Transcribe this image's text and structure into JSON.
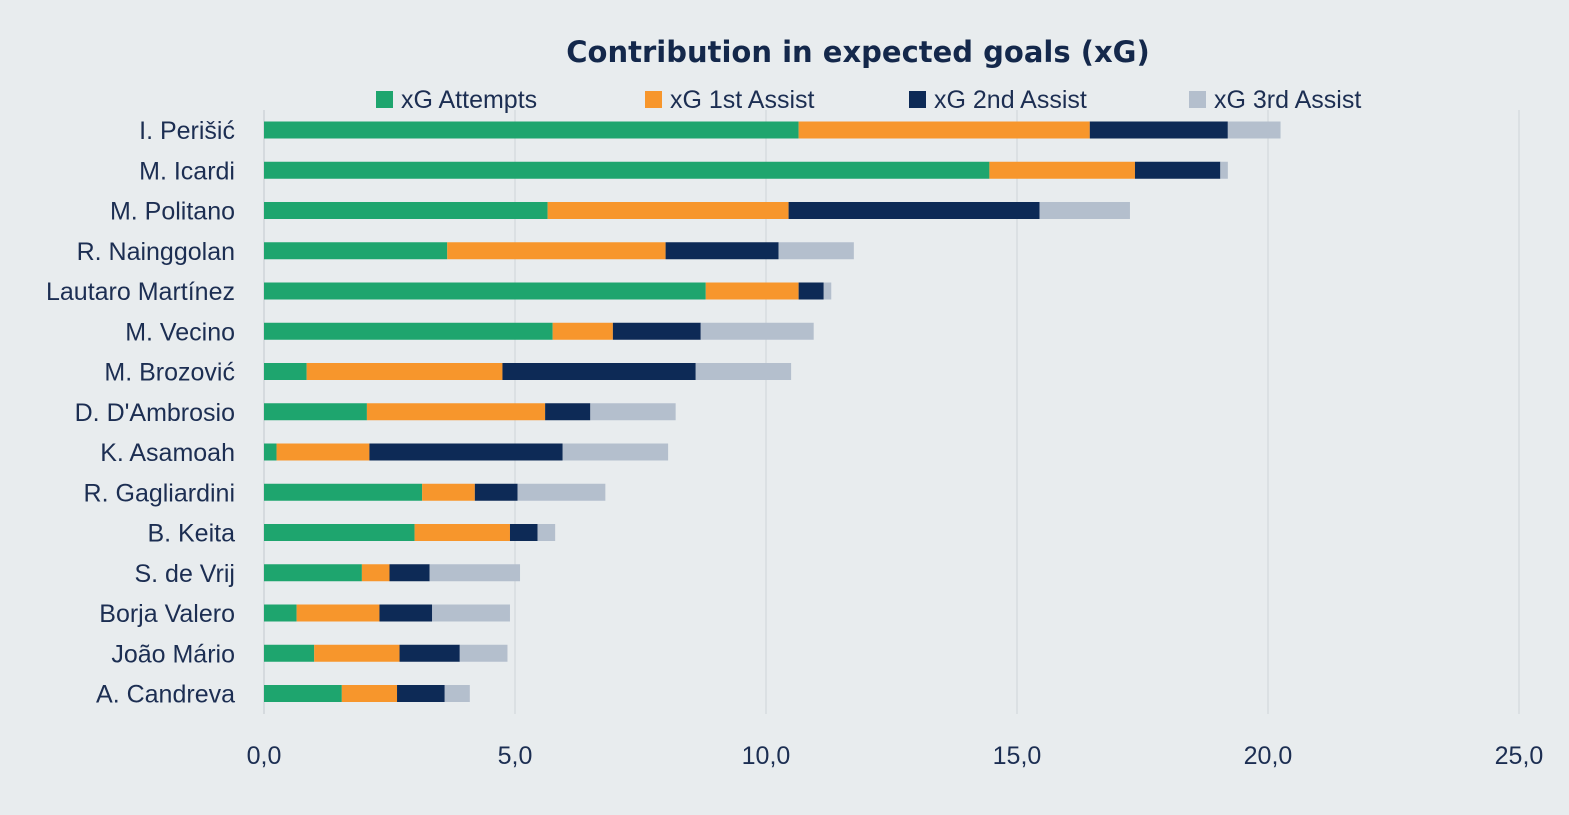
{
  "chart_data": {
    "type": "bar",
    "orientation": "horizontal",
    "stacked": true,
    "title": "Contribution in expected goals (xG)",
    "xlabel": "",
    "ylabel": "",
    "xlim": [
      0,
      25
    ],
    "x_ticks": [
      0,
      5,
      10,
      15,
      20,
      25
    ],
    "x_tick_labels": [
      "0,0",
      "5,0",
      "10,0",
      "15,0",
      "20,0",
      "25,0"
    ],
    "grid": true,
    "legend_position": "top",
    "categories": [
      "I. Perišić",
      "M. Icardi",
      "M. Politano",
      "R. Nainggolan",
      "Lautaro Martínez",
      "M. Vecino",
      "M. Brozović",
      "D. D'Ambrosio",
      "K. Asamoah",
      "R. Gagliardini",
      "B. Keita",
      "S. de Vrij",
      "Borja Valero",
      "João Mário",
      "A. Candreva"
    ],
    "series": [
      {
        "name": "xG Attempts",
        "color": "#1ea56e",
        "values": [
          10.65,
          14.45,
          5.65,
          3.65,
          8.8,
          5.75,
          0.85,
          2.05,
          0.25,
          3.15,
          3.0,
          1.95,
          0.65,
          1.0,
          1.55
        ]
      },
      {
        "name": "xG 1st Assist",
        "color": "#f7962c",
        "values": [
          5.8,
          2.9,
          4.8,
          4.35,
          1.85,
          1.2,
          3.9,
          3.55,
          1.85,
          1.05,
          1.9,
          0.55,
          1.65,
          1.7,
          1.1
        ]
      },
      {
        "name": "xG 2nd Assist",
        "color": "#0d2a56",
        "values": [
          2.75,
          1.7,
          5.0,
          2.25,
          0.5,
          1.75,
          3.85,
          0.9,
          3.85,
          0.85,
          0.55,
          0.8,
          1.05,
          1.2,
          0.95
        ]
      },
      {
        "name": "xG 3rd Assist",
        "color": "#b4bfcd",
        "values": [
          1.05,
          0.15,
          1.8,
          1.5,
          0.15,
          2.25,
          1.9,
          1.7,
          2.1,
          1.75,
          0.35,
          1.8,
          1.55,
          0.95,
          0.5
        ]
      }
    ]
  }
}
